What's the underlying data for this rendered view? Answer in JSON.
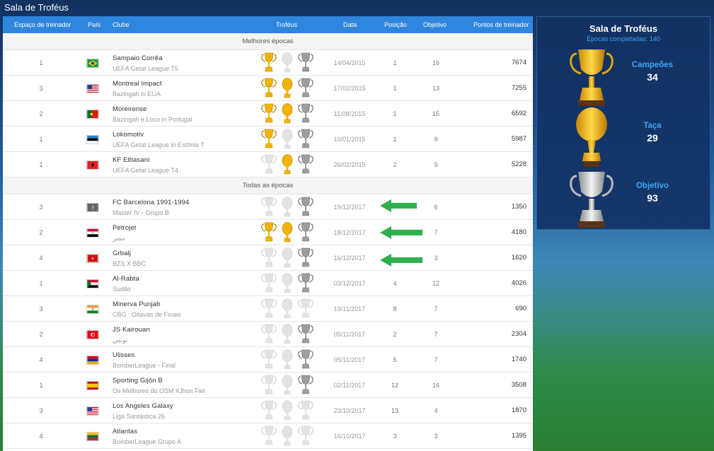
{
  "page_title": "Sala de Troféus",
  "columns": {
    "slot": "Espaço de treinador",
    "country": "País",
    "club": "Clube",
    "trophies": "Troféus",
    "date": "Data",
    "position": "Posição",
    "objective": "Objetivo",
    "points": "Pontos de treinador"
  },
  "sections": {
    "best": "Melhores épocas",
    "all": "Todas as épocas"
  },
  "best_seasons": [
    {
      "slot": "1",
      "flag": "brazil",
      "club": "Sampaio Corrêa",
      "league": "UEFA Getat League T5",
      "trophies": [
        true,
        false,
        true
      ],
      "date": "14/04/2015",
      "position": "1",
      "objective": "16",
      "points": "7674"
    },
    {
      "slot": "3",
      "flag": "usa",
      "club": "Montreal Impact",
      "league": "Bazingah in EUA",
      "trophies": [
        true,
        true,
        true
      ],
      "date": "17/02/2015",
      "position": "1",
      "objective": "13",
      "points": "7255"
    },
    {
      "slot": "2",
      "flag": "portugal",
      "club": "Moreirense",
      "league": "Bazingah e Loco in Portugal",
      "trophies": [
        true,
        true,
        true
      ],
      "date": "11/08/2015",
      "position": "1",
      "objective": "15",
      "points": "6592"
    },
    {
      "slot": "1",
      "flag": "estonia",
      "club": "Lokomotiv",
      "league": "UEFA Getat League in Estônia T",
      "trophies": [
        true,
        false,
        true
      ],
      "date": "10/01/2015",
      "position": "1",
      "objective": "9",
      "points": "5987"
    },
    {
      "slot": "1",
      "flag": "albania",
      "club": "KF Elbasani",
      "league": "UEFA Getat League T4",
      "trophies": [
        false,
        true,
        true
      ],
      "date": "26/02/2015",
      "position": "2",
      "objective": "9",
      "points": "5228"
    }
  ],
  "all_seasons": [
    {
      "slot": "3",
      "flag": "unknown",
      "club": "FC Barcelona 1991-1994",
      "league": "Master IV - Grupo B",
      "trophies": [
        false,
        false,
        true
      ],
      "date": "19/12/2017",
      "position": "",
      "objective": "6",
      "points": "1350"
    },
    {
      "slot": "2",
      "flag": "egypt",
      "club": "Petrojet",
      "league": "مصر",
      "trophies": [
        true,
        true,
        true
      ],
      "date": "18/12/2017",
      "position": "",
      "objective": "7",
      "points": "4180"
    },
    {
      "slot": "4",
      "flag": "montenegro",
      "club": "Grbalj",
      "league": "BZS X BBC",
      "trophies": [
        false,
        false,
        true
      ],
      "date": "16/12/2017",
      "position": "",
      "objective": "3",
      "points": "1620"
    },
    {
      "slot": "1",
      "flag": "sudan",
      "club": "Al-Rabta",
      "league": "Sudão",
      "trophies": [
        false,
        false,
        true
      ],
      "date": "03/12/2017",
      "position": "4",
      "objective": "12",
      "points": "4026"
    },
    {
      "slot": "3",
      "flag": "india",
      "club": "Minerva Punjab",
      "league": "CBG : Oitavas de Finais",
      "trophies": [
        false,
        false,
        false
      ],
      "date": "19/11/2017",
      "position": "8",
      "objective": "7",
      "points": "690"
    },
    {
      "slot": "2",
      "flag": "tunisia",
      "club": "JS Kairouan",
      "league": "تونس",
      "trophies": [
        false,
        false,
        true
      ],
      "date": "05/11/2017",
      "position": "2",
      "objective": "7",
      "points": "2304"
    },
    {
      "slot": "4",
      "flag": "armenia",
      "club": "Ulisses",
      "league": "BomberLeague - Final",
      "trophies": [
        false,
        false,
        true
      ],
      "date": "05/11/2017",
      "position": "5",
      "objective": "7",
      "points": "1740"
    },
    {
      "slot": "1",
      "flag": "spain",
      "club": "Sporting Gijón B",
      "league": "Os Melhores do OSM #Jhon Fiel",
      "trophies": [
        false,
        false,
        true
      ],
      "date": "02/11/2017",
      "position": "12",
      "objective": "16",
      "points": "3508"
    },
    {
      "slot": "3",
      "flag": "usa",
      "club": "Los Angeles Galaxy",
      "league": "Liga Santástica 26",
      "trophies": [
        false,
        false,
        false
      ],
      "date": "23/10/2017",
      "position": "13",
      "objective": "4",
      "points": "1870"
    },
    {
      "slot": "4",
      "flag": "lithuania",
      "club": "Atlantas",
      "league": "BomberLeague Grupo A",
      "trophies": [
        false,
        false,
        false
      ],
      "date": "16/10/2017",
      "position": "3",
      "objective": "3",
      "points": "1395"
    }
  ],
  "summary": {
    "title": "Sala de Troféus",
    "subtitle": "Épocas completadas: 140",
    "champions_label": "Campeões",
    "champions_value": "34",
    "cup_label": "Taça",
    "cup_value": "29",
    "objective_label": "Objetivo",
    "objective_value": "93"
  },
  "colors": {
    "header": "#2f86de",
    "gold": "#f2b400",
    "silver": "#b5b5b5",
    "arrow": "#2eb04c",
    "stat_label": "#3fa6f2"
  },
  "icons": [
    "league-trophy-icon",
    "cup-trophy-icon",
    "objective-trophy-icon",
    "green-arrow-icon",
    "flag-icon"
  ]
}
